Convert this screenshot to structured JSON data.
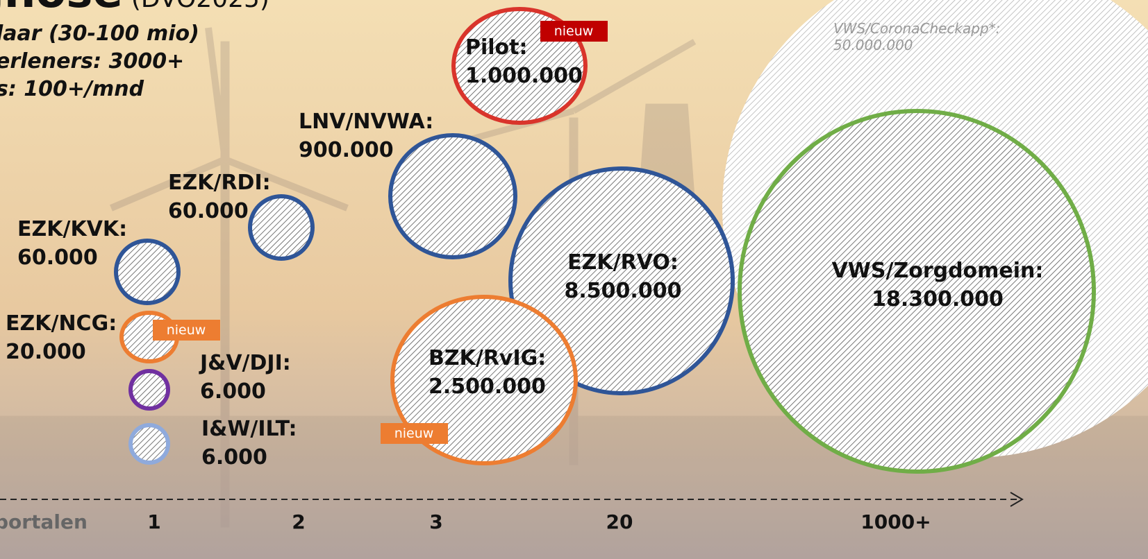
{
  "header": {
    "title": "gnose",
    "title_suffix": "(DVO2025)",
    "lines": [
      "laar (30-100 mio)",
      "erleners: 3000+",
      "s: 100+/mnd"
    ]
  },
  "note": {
    "name": "VWS/CoronaCheckapp*:",
    "value": "50.000.000"
  },
  "bubbles": [
    {
      "name": "Pilot:",
      "value": "1.000.000",
      "badge": "nieuw"
    },
    {
      "name": "LNV/NVWA:",
      "value": "900.000"
    },
    {
      "name": "EZK/RDI:",
      "value": "60.000"
    },
    {
      "name": "EZK/KVK:",
      "value": "60.000"
    },
    {
      "name": "EZK/NCG:",
      "value": "20.000",
      "badge": "nieuw"
    },
    {
      "name": "J&V/DJI:",
      "value": "6.000"
    },
    {
      "name": "I&W/ILT:",
      "value": "6.000"
    },
    {
      "name": "EZK/RVO:",
      "value": "8.500.000"
    },
    {
      "name": "BZK/RvIG:",
      "value": "2.500.000",
      "badge": "nieuw"
    },
    {
      "name": "VWS/Zorgdomein:",
      "value": "18.300.000"
    }
  ],
  "axis": {
    "label": "portalen",
    "ticks": [
      "1",
      "2",
      "3",
      "20",
      "1000+"
    ]
  }
}
